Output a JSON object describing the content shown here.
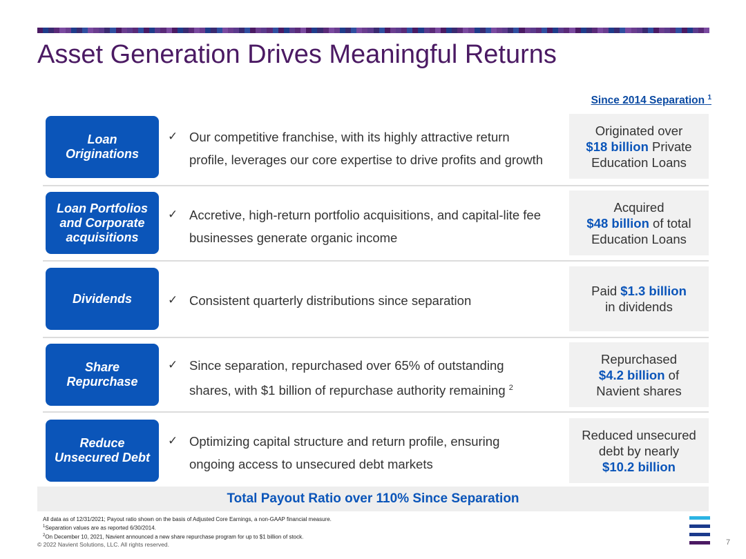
{
  "title": "Asset Generation Drives Meaningful Returns",
  "since_header": {
    "text": "Since 2014 Separation",
    "sup": "1"
  },
  "rows": [
    {
      "label": "Loan Originations",
      "check": "✓",
      "desc_line1": "Our competitive franchise, with its highly attractive return",
      "desc_line2": "profile, leverages our core expertise to drive profits and growth",
      "stat_pre": "Originated over",
      "stat_hl": "$18 billion",
      "stat_mid": " Private",
      "stat_post": "Education Loans"
    },
    {
      "label": "Loan Portfolios and Corporate acquisitions",
      "check": "✓",
      "desc_line1": "Accretive, high-return portfolio acquisitions, and capital-lite fee",
      "desc_line2": "businesses generate organic income",
      "stat_pre": "Acquired",
      "stat_hl": "$48 billion",
      "stat_mid": " of total",
      "stat_post": "Education Loans"
    },
    {
      "label": "Dividends",
      "check": "✓",
      "desc_line1": "Consistent quarterly distributions since separation",
      "stat_pre": "Paid ",
      "stat_hl": "$1.3 billion",
      "stat_post": "in dividends"
    },
    {
      "label": "Share Repurchase",
      "check": "✓",
      "desc_line1": "Since separation, repurchased over 65% of outstanding",
      "desc_line2": "shares, with $1 billion of repurchase authority remaining",
      "desc_sup": "2",
      "stat_pre": "Repurchased",
      "stat_hl": "$4.2 billion",
      "stat_mid": " of",
      "stat_post": "Navient shares"
    },
    {
      "label": "Reduce Unsecured Debt",
      "check": "✓",
      "desc_line1": "Optimizing capital structure and return profile, ensuring",
      "desc_line2": "ongoing access to unsecured debt markets",
      "stat_pre": "Reduced unsecured",
      "stat_mid2": "debt by nearly",
      "stat_hl": "$10.2 billion"
    }
  ],
  "total_payout": "Total Payout Ratio over 110% Since Separation",
  "footnotes": {
    "line1": "All data as of 12/31/2021; Payout ratio shown on the basis of Adjusted Core Earnings, a non-GAAP financial measure.",
    "line2_sup": "1",
    "line2": "Separation values are as reported 6/30/2014.",
    "line3_sup": "2",
    "line3": "On December 10, 2021, Navient announced a new share repurchase program for up to $1 billion of stock."
  },
  "copyright": "© 2022 Navient Solutions, LLC. All rights reserved.",
  "page_number": "7",
  "colors": {
    "title": "#4b1a63",
    "accent_blue": "#0b55b9",
    "stat_bg": "#f1f1f1",
    "logo_cyan": "#2bb3e3",
    "logo_navy": "#1b3a8c",
    "logo_purple": "#4b1a63"
  }
}
